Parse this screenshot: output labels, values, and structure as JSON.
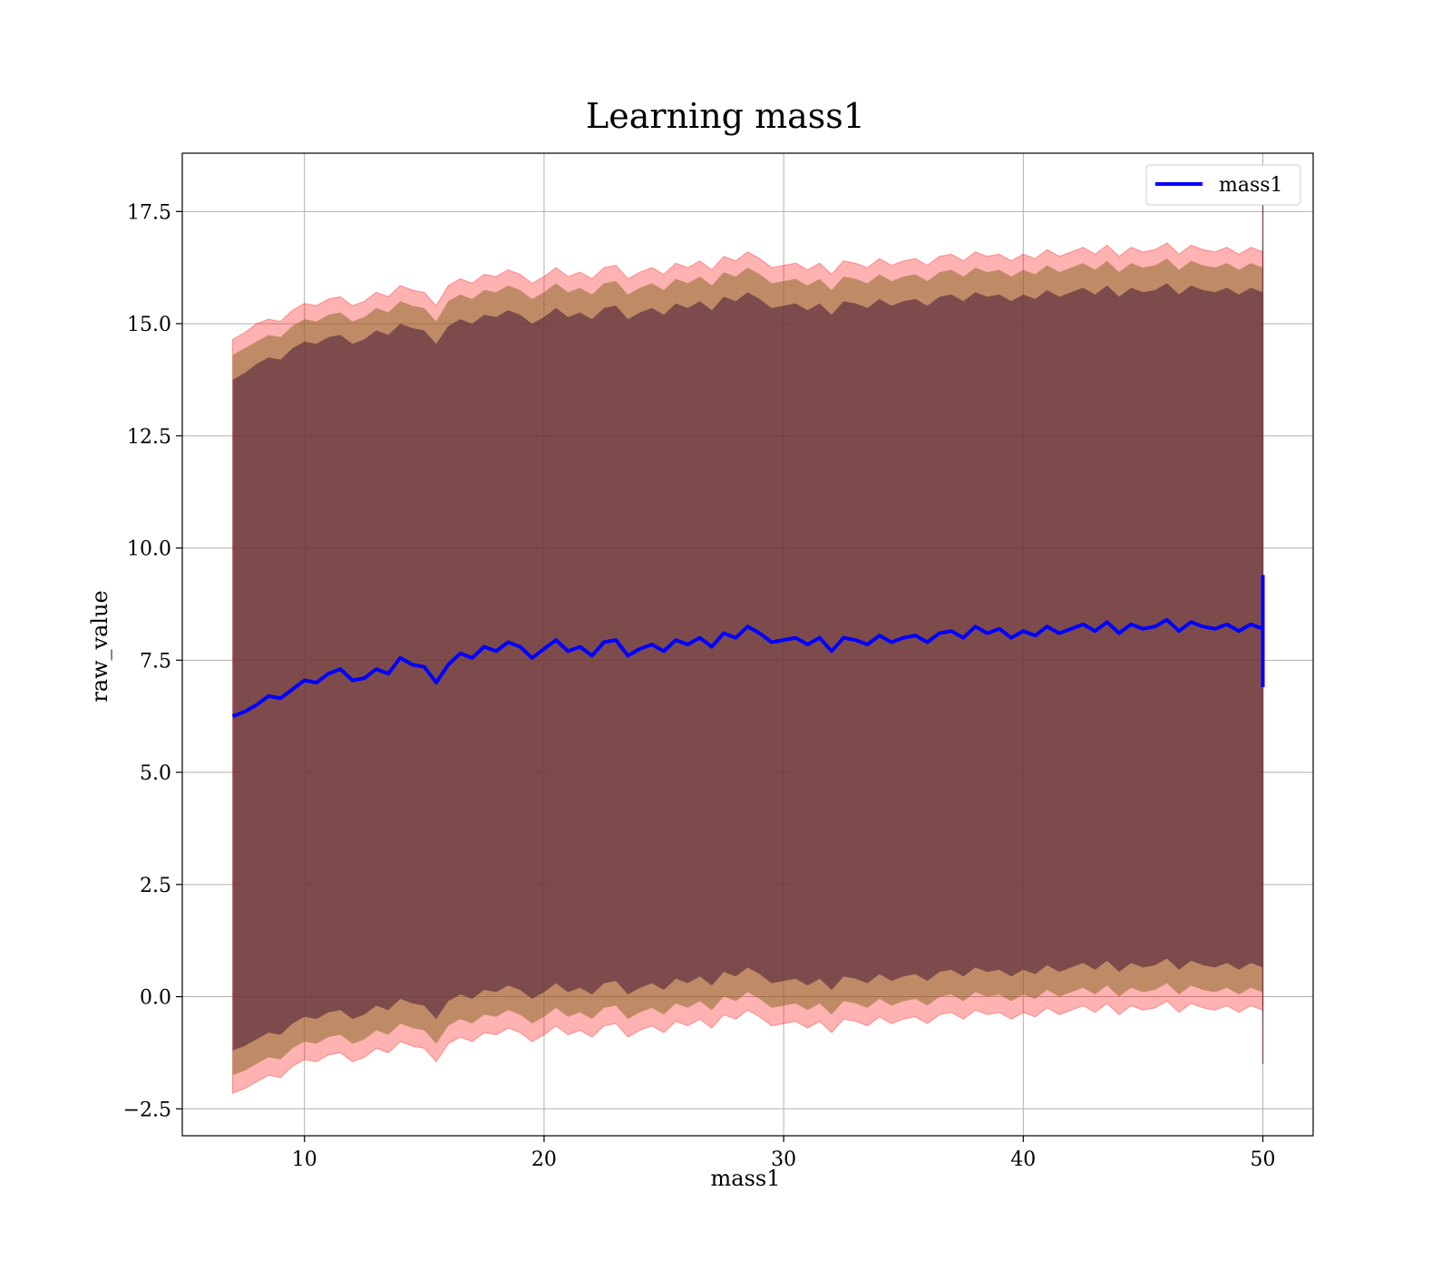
{
  "chart_data": {
    "type": "area",
    "title": "Learning mass1",
    "xlabel": "mass1",
    "ylabel": "raw_value",
    "xlim": [
      4.9,
      52.1
    ],
    "ylim": [
      -3.1,
      18.8
    ],
    "xticks": [
      10,
      20,
      30,
      40,
      50
    ],
    "xtick_labels": [
      "10",
      "20",
      "30",
      "40",
      "50"
    ],
    "yticks": [
      -2.5,
      0.0,
      2.5,
      5.0,
      7.5,
      10.0,
      12.5,
      15.0,
      17.5
    ],
    "ytick_labels": [
      "−2.5",
      "0.0",
      "2.5",
      "5.0",
      "7.5",
      "10.0",
      "12.5",
      "15.0",
      "17.5"
    ],
    "grid": true,
    "legend": {
      "placement": "top-right",
      "entries": [
        {
          "label": "mass1",
          "color": "#0000ff"
        }
      ]
    },
    "colors": {
      "line": "#0000ff",
      "band_outer": "#ff0000",
      "band_mid": "#8b6b2a",
      "band_inner": "#5a2a3e"
    },
    "x": [
      7.0,
      7.5,
      8.0,
      8.5,
      9.0,
      9.5,
      10.0,
      10.5,
      11.0,
      11.5,
      12.0,
      12.5,
      13.0,
      13.5,
      14.0,
      14.5,
      15.0,
      15.5,
      16.0,
      16.5,
      17.0,
      17.5,
      18.0,
      18.5,
      19.0,
      19.5,
      20.0,
      20.5,
      21.0,
      21.5,
      22.0,
      22.5,
      23.0,
      23.5,
      24.0,
      24.5,
      25.0,
      25.5,
      26.0,
      26.5,
      27.0,
      27.5,
      28.0,
      28.5,
      29.0,
      29.5,
      30.0,
      30.5,
      31.0,
      31.5,
      32.0,
      32.5,
      33.0,
      33.5,
      34.0,
      34.5,
      35.0,
      35.5,
      36.0,
      36.5,
      37.0,
      37.5,
      38.0,
      38.5,
      39.0,
      39.5,
      40.0,
      40.5,
      41.0,
      41.5,
      42.0,
      42.5,
      43.0,
      43.5,
      44.0,
      44.5,
      45.0,
      45.5,
      46.0,
      46.5,
      47.0,
      47.5,
      48.0,
      48.5,
      49.0,
      49.5,
      50.0
    ],
    "series": [
      {
        "name": "mass1",
        "values": [
          6.25,
          6.35,
          6.5,
          6.7,
          6.65,
          6.85,
          7.05,
          7.0,
          7.2,
          7.3,
          7.05,
          7.1,
          7.3,
          7.2,
          7.55,
          7.4,
          7.35,
          7.0,
          7.4,
          7.65,
          7.55,
          7.8,
          7.7,
          7.9,
          7.8,
          7.55,
          7.75,
          7.95,
          7.7,
          7.8,
          7.6,
          7.9,
          7.95,
          7.6,
          7.75,
          7.85,
          7.7,
          7.95,
          7.85,
          8.0,
          7.8,
          8.1,
          8.0,
          8.25,
          8.1,
          7.9,
          7.95,
          8.0,
          7.85,
          8.0,
          7.7,
          8.0,
          7.95,
          7.85,
          8.05,
          7.9,
          8.0,
          8.05,
          7.9,
          8.1,
          8.15,
          8.0,
          8.25,
          8.1,
          8.2,
          8.0,
          8.15,
          8.05,
          8.25,
          8.1,
          8.2,
          8.3,
          8.15,
          8.35,
          8.1,
          8.3,
          8.2,
          8.25,
          8.4,
          8.15,
          8.35,
          8.25,
          8.2,
          8.3,
          8.15,
          8.3,
          8.2
        ]
      },
      {
        "name": "",
        "upper_outer": [
          14.65,
          14.8,
          15.0,
          15.1,
          15.05,
          15.3,
          15.45,
          15.4,
          15.55,
          15.6,
          15.4,
          15.5,
          15.7,
          15.6,
          15.85,
          15.75,
          15.7,
          15.4,
          15.85,
          16.0,
          15.9,
          16.1,
          16.05,
          16.2,
          16.1,
          15.9,
          16.05,
          16.25,
          16.05,
          16.15,
          16.0,
          16.25,
          16.3,
          16.0,
          16.15,
          16.25,
          16.1,
          16.35,
          16.25,
          16.4,
          16.2,
          16.5,
          16.4,
          16.6,
          16.45,
          16.25,
          16.3,
          16.35,
          16.2,
          16.35,
          16.1,
          16.4,
          16.35,
          16.25,
          16.45,
          16.3,
          16.4,
          16.45,
          16.3,
          16.5,
          16.55,
          16.4,
          16.6,
          16.5,
          16.55,
          16.4,
          16.55,
          16.45,
          16.65,
          16.5,
          16.6,
          16.7,
          16.55,
          16.75,
          16.5,
          16.7,
          16.6,
          16.65,
          16.8,
          16.55,
          16.75,
          16.65,
          16.6,
          16.7,
          16.55,
          16.7,
          16.6
        ],
        "upper_mid": [
          14.3,
          14.45,
          14.6,
          14.75,
          14.7,
          14.95,
          15.1,
          15.05,
          15.2,
          15.25,
          15.05,
          15.15,
          15.35,
          15.25,
          15.5,
          15.4,
          15.35,
          15.05,
          15.5,
          15.65,
          15.55,
          15.75,
          15.7,
          15.85,
          15.75,
          15.55,
          15.7,
          15.9,
          15.7,
          15.8,
          15.65,
          15.9,
          15.95,
          15.65,
          15.8,
          15.9,
          15.75,
          16.0,
          15.9,
          16.05,
          15.85,
          16.15,
          16.05,
          16.25,
          16.1,
          15.9,
          15.95,
          16.0,
          15.85,
          16.0,
          15.75,
          16.05,
          16.0,
          15.9,
          16.1,
          15.95,
          16.05,
          16.1,
          15.95,
          16.15,
          16.2,
          16.05,
          16.25,
          16.15,
          16.2,
          16.05,
          16.2,
          16.1,
          16.3,
          16.15,
          16.25,
          16.35,
          16.2,
          16.4,
          16.15,
          16.35,
          16.25,
          16.3,
          16.45,
          16.2,
          16.4,
          16.3,
          16.25,
          16.35,
          16.2,
          16.35,
          16.25
        ],
        "upper_inner": [
          13.75,
          13.9,
          14.1,
          14.25,
          14.2,
          14.45,
          14.6,
          14.55,
          14.7,
          14.75,
          14.55,
          14.65,
          14.85,
          14.75,
          15.0,
          14.9,
          14.85,
          14.55,
          14.95,
          15.1,
          15.0,
          15.2,
          15.15,
          15.3,
          15.2,
          15.0,
          15.15,
          15.35,
          15.15,
          15.25,
          15.1,
          15.35,
          15.4,
          15.1,
          15.25,
          15.35,
          15.2,
          15.45,
          15.35,
          15.5,
          15.3,
          15.6,
          15.5,
          15.7,
          15.55,
          15.35,
          15.4,
          15.45,
          15.3,
          15.45,
          15.2,
          15.5,
          15.45,
          15.35,
          15.55,
          15.4,
          15.5,
          15.55,
          15.4,
          15.6,
          15.65,
          15.5,
          15.7,
          15.6,
          15.65,
          15.5,
          15.65,
          15.55,
          15.75,
          15.6,
          15.7,
          15.8,
          15.65,
          15.85,
          15.6,
          15.8,
          15.7,
          15.75,
          15.9,
          15.65,
          15.85,
          15.75,
          15.7,
          15.8,
          15.65,
          15.8,
          15.7
        ],
        "lower_inner": [
          -1.2,
          -1.1,
          -0.95,
          -0.8,
          -0.85,
          -0.6,
          -0.45,
          -0.5,
          -0.35,
          -0.3,
          -0.5,
          -0.4,
          -0.2,
          -0.3,
          -0.05,
          -0.15,
          -0.2,
          -0.5,
          -0.1,
          0.05,
          -0.05,
          0.15,
          0.1,
          0.25,
          0.15,
          -0.05,
          0.1,
          0.3,
          0.1,
          0.2,
          0.05,
          0.3,
          0.35,
          0.05,
          0.2,
          0.3,
          0.15,
          0.4,
          0.3,
          0.45,
          0.25,
          0.55,
          0.45,
          0.65,
          0.5,
          0.3,
          0.35,
          0.4,
          0.25,
          0.4,
          0.15,
          0.45,
          0.4,
          0.3,
          0.5,
          0.35,
          0.45,
          0.5,
          0.35,
          0.55,
          0.6,
          0.45,
          0.65,
          0.55,
          0.6,
          0.45,
          0.6,
          0.5,
          0.7,
          0.55,
          0.65,
          0.75,
          0.6,
          0.8,
          0.55,
          0.75,
          0.65,
          0.7,
          0.85,
          0.6,
          0.8,
          0.7,
          0.65,
          0.75,
          0.6,
          0.75,
          0.65
        ],
        "lower_mid": [
          -1.75,
          -1.65,
          -1.5,
          -1.35,
          -1.4,
          -1.15,
          -1.0,
          -1.05,
          -0.9,
          -0.85,
          -1.05,
          -0.95,
          -0.75,
          -0.85,
          -0.6,
          -0.7,
          -0.75,
          -1.05,
          -0.65,
          -0.5,
          -0.6,
          -0.4,
          -0.45,
          -0.3,
          -0.4,
          -0.6,
          -0.45,
          -0.25,
          -0.45,
          -0.35,
          -0.5,
          -0.25,
          -0.2,
          -0.5,
          -0.35,
          -0.25,
          -0.4,
          -0.15,
          -0.25,
          -0.1,
          -0.3,
          0.0,
          -0.1,
          0.1,
          -0.05,
          -0.25,
          -0.2,
          -0.15,
          -0.3,
          -0.15,
          -0.4,
          -0.1,
          -0.15,
          -0.25,
          -0.05,
          -0.2,
          -0.1,
          -0.05,
          -0.2,
          0.0,
          0.05,
          -0.1,
          0.1,
          0.0,
          0.05,
          -0.1,
          0.05,
          -0.05,
          0.15,
          0.0,
          0.1,
          0.2,
          0.05,
          0.25,
          0.0,
          0.2,
          0.1,
          0.15,
          0.3,
          0.05,
          0.25,
          0.15,
          0.1,
          0.2,
          0.05,
          0.2,
          0.1
        ],
        "lower_outer": [
          -2.15,
          -2.05,
          -1.9,
          -1.75,
          -1.8,
          -1.55,
          -1.4,
          -1.45,
          -1.3,
          -1.25,
          -1.45,
          -1.35,
          -1.15,
          -1.25,
          -1.0,
          -1.1,
          -1.15,
          -1.45,
          -1.05,
          -0.9,
          -1.0,
          -0.8,
          -0.85,
          -0.7,
          -0.8,
          -1.0,
          -0.85,
          -0.65,
          -0.85,
          -0.75,
          -0.9,
          -0.65,
          -0.6,
          -0.9,
          -0.75,
          -0.65,
          -0.8,
          -0.55,
          -0.65,
          -0.5,
          -0.7,
          -0.4,
          -0.5,
          -0.3,
          -0.45,
          -0.65,
          -0.6,
          -0.55,
          -0.7,
          -0.55,
          -0.8,
          -0.5,
          -0.55,
          -0.65,
          -0.45,
          -0.6,
          -0.5,
          -0.45,
          -0.6,
          -0.4,
          -0.35,
          -0.5,
          -0.3,
          -0.4,
          -0.35,
          -0.5,
          -0.35,
          -0.45,
          -0.25,
          -0.4,
          -0.3,
          -0.2,
          -0.35,
          -0.15,
          -0.4,
          -0.2,
          -0.3,
          -0.25,
          -0.1,
          -0.35,
          -0.15,
          -0.25,
          -0.3,
          -0.2,
          -0.35,
          -0.2,
          -0.3
        ]
      }
    ],
    "end_spike": {
      "x": 50.0,
      "line_min": 6.9,
      "line_max": 9.4,
      "band_min": -1.5,
      "band_max": 17.7
    }
  }
}
